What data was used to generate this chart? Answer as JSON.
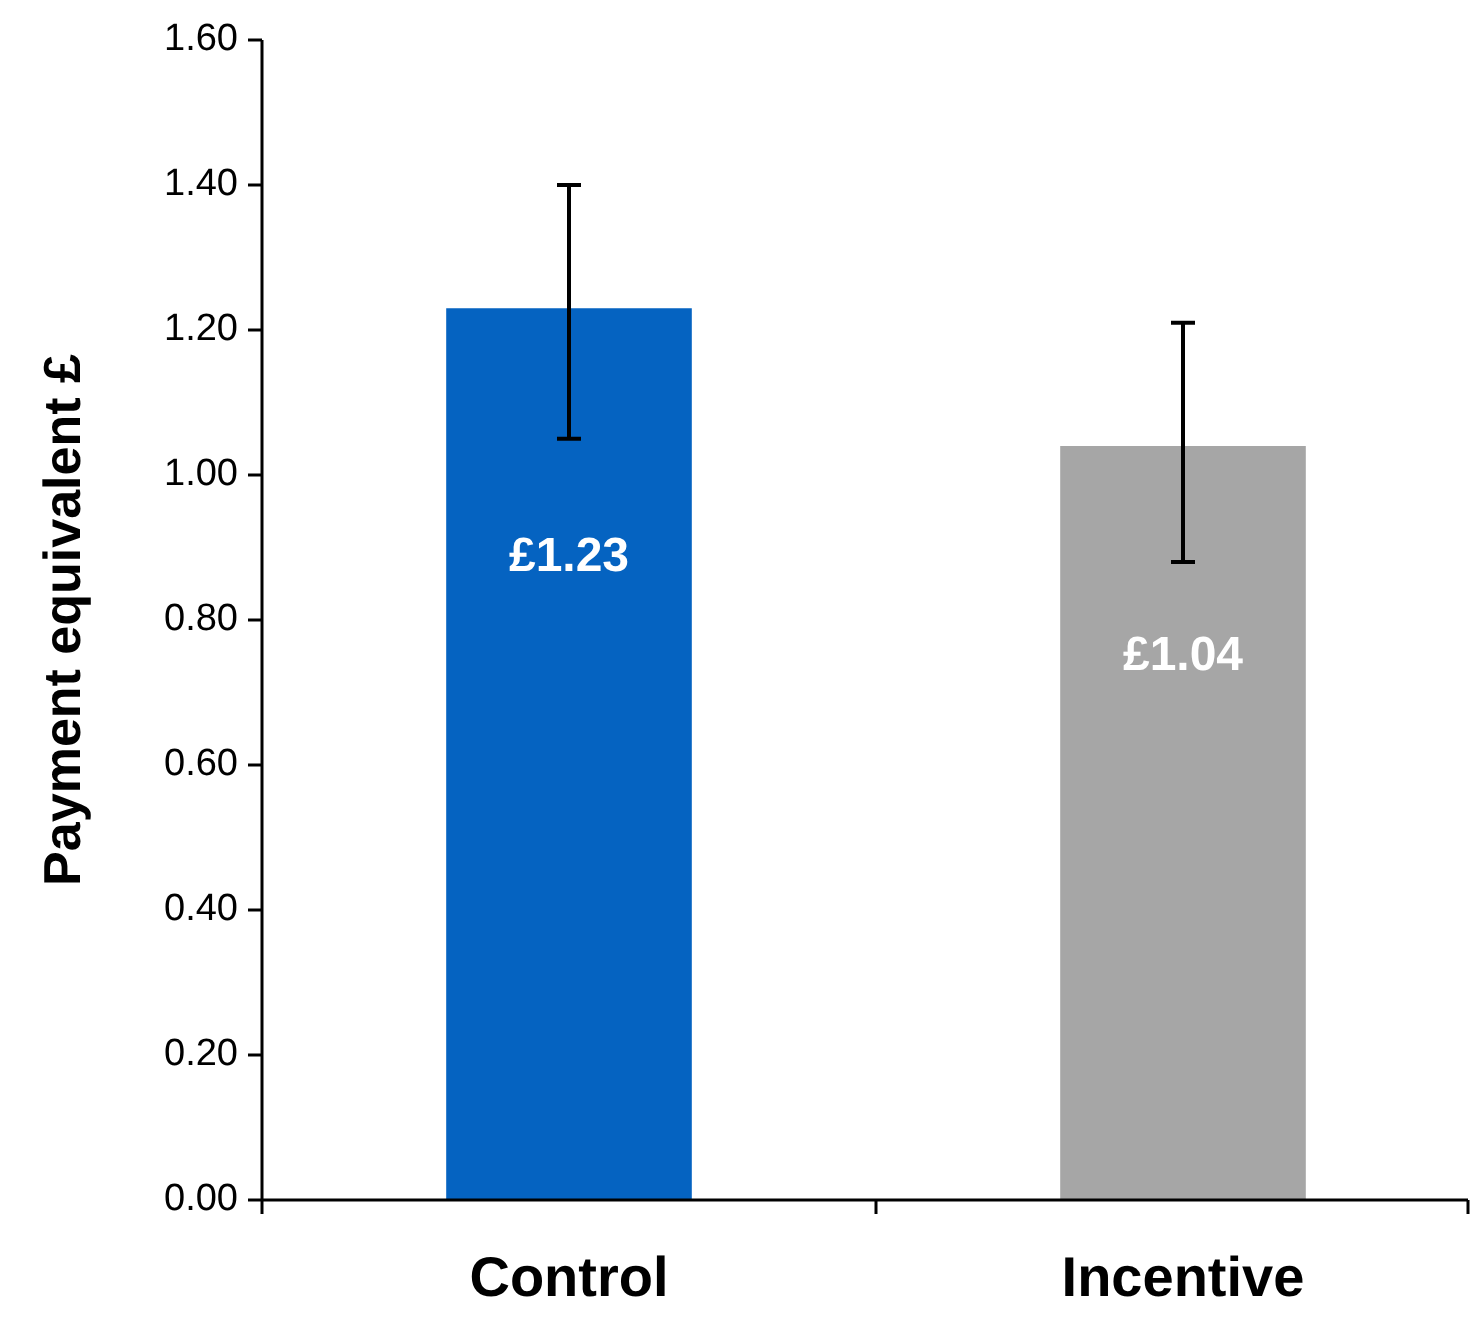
{
  "chart_data": {
    "type": "bar",
    "ylabel": "Payment equivalent £",
    "categories": [
      "Control",
      "Incentive"
    ],
    "values": [
      1.23,
      1.04
    ],
    "colors": [
      "#0563c1",
      "#a6a6a6"
    ],
    "errors": [
      [
        1.05,
        1.4
      ],
      [
        0.88,
        1.21
      ]
    ],
    "value_labels": [
      "£1.23",
      "£1.04"
    ],
    "ylim": [
      0,
      1.6
    ],
    "yticks": [
      {
        "value": 0,
        "label": "0.00"
      },
      {
        "value": 0.2,
        "label": "0.20"
      },
      {
        "value": 0.4,
        "label": "0.40"
      },
      {
        "value": 0.6,
        "label": "0.60"
      },
      {
        "value": 0.8,
        "label": "0.80"
      },
      {
        "value": 1,
        "label": "1.00"
      },
      {
        "value": 1.2,
        "label": "1.20"
      },
      {
        "value": 1.4,
        "label": "1.40"
      },
      {
        "value": 1.6,
        "label": "1.60"
      }
    ],
    "grid": false
  }
}
